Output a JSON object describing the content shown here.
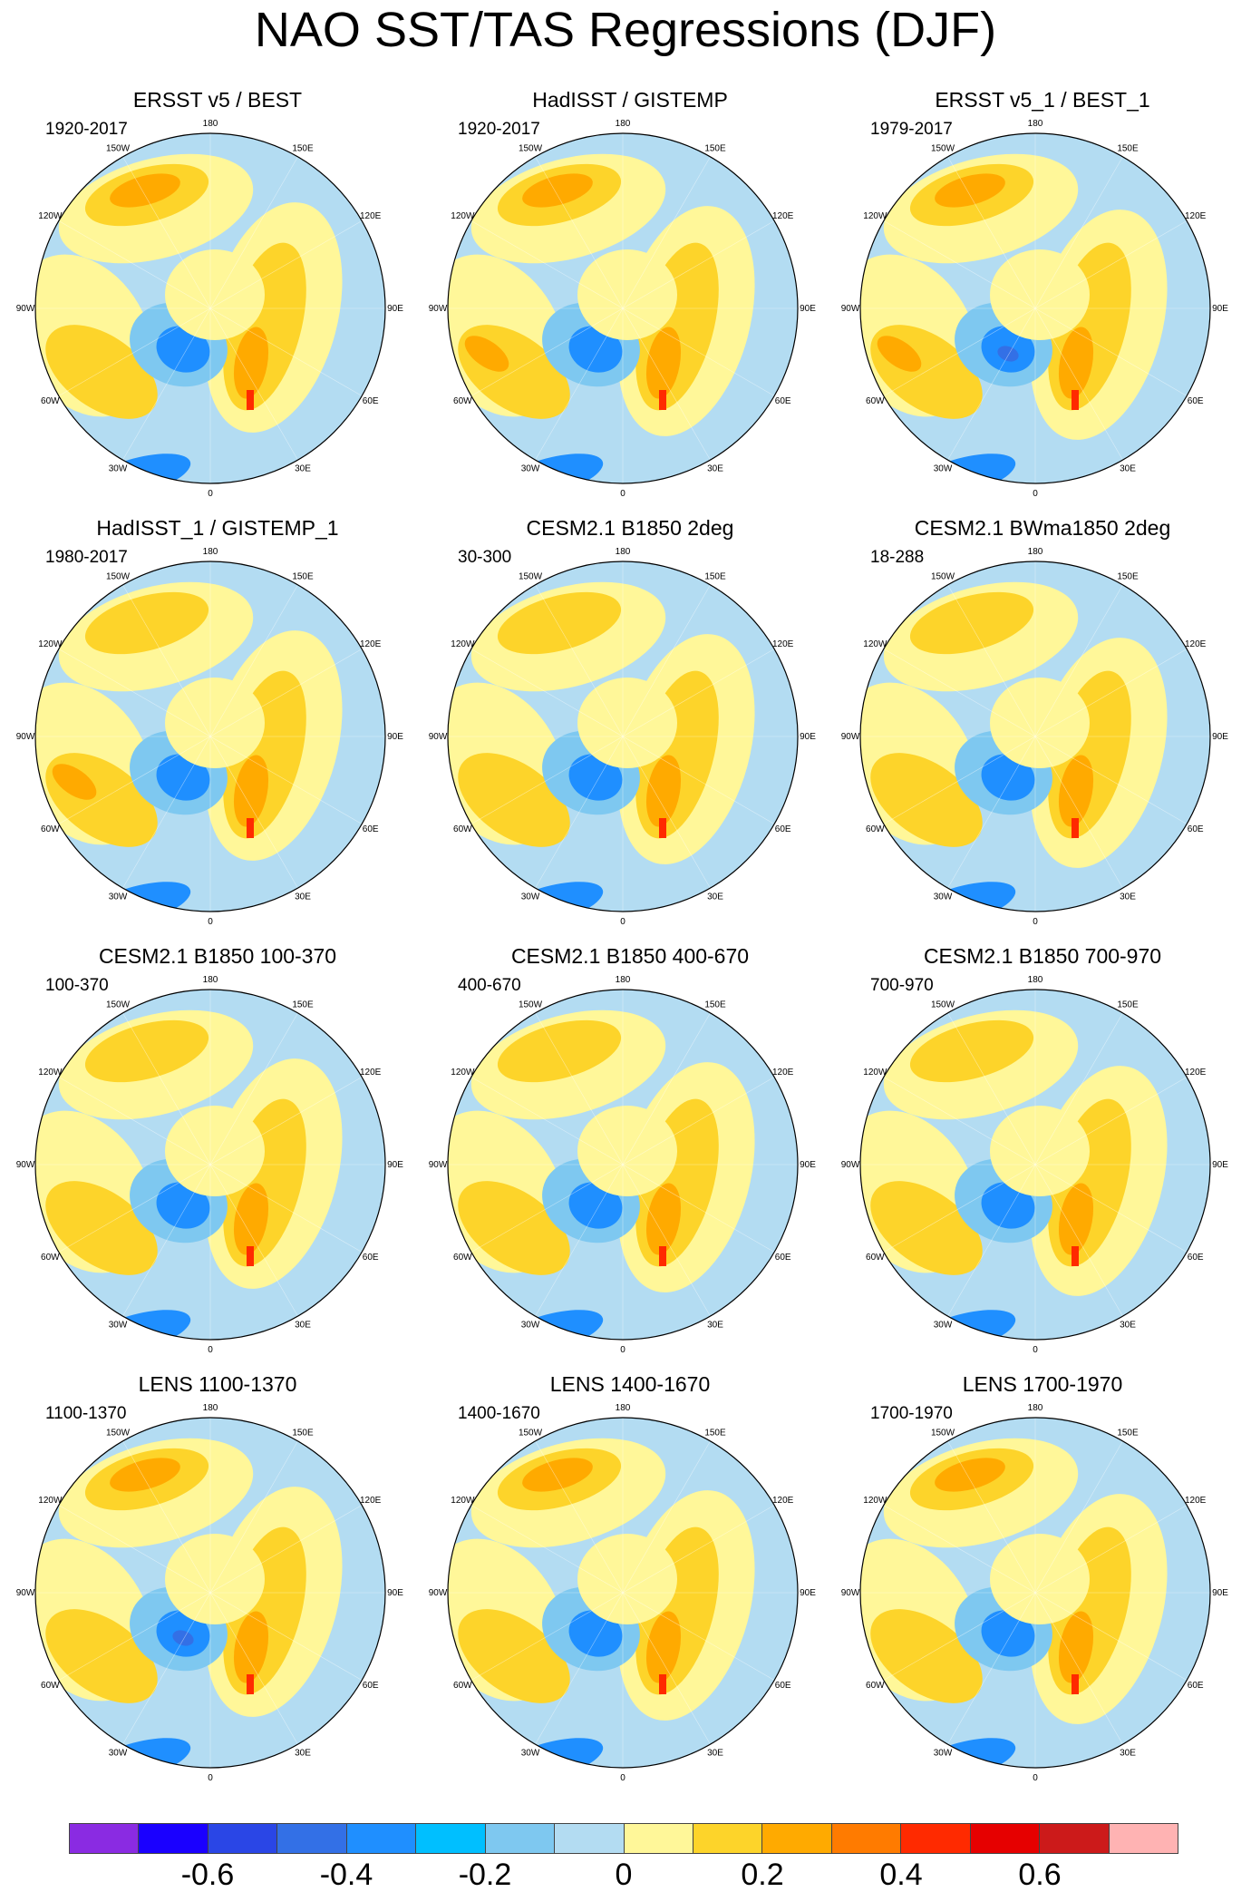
{
  "title": "NAO SST/TAS Regressions (DJF)",
  "lon_labels": [
    "180",
    "150E",
    "120E",
    "90E",
    "60E",
    "30E",
    "0",
    "30W",
    "60W",
    "90W",
    "120W",
    "150W"
  ],
  "panels": [
    {
      "title": "ERSST v5 / BEST",
      "period": "1920-2017"
    },
    {
      "title": "HadISST / GISTEMP",
      "period": "1920-2017"
    },
    {
      "title": "ERSST v5_1 / BEST_1",
      "period": "1979-2017"
    },
    {
      "title": "HadISST_1 / GISTEMP_1",
      "period": "1980-2017"
    },
    {
      "title": "CESM2.1 B1850 2deg",
      "period": "30-300"
    },
    {
      "title": "CESM2.1 BWma1850 2deg",
      "period": "18-288"
    },
    {
      "title": "CESM2.1 B1850 100-370",
      "period": "100-370"
    },
    {
      "title": "CESM2.1 B1850 400-670",
      "period": "400-670"
    },
    {
      "title": "CESM2.1 B1850 700-970",
      "period": "700-970"
    },
    {
      "title": "LENS 1100-1370",
      "period": "1100-1370"
    },
    {
      "title": "LENS 1400-1670",
      "period": "1400-1670"
    },
    {
      "title": "LENS 1700-1970",
      "period": "1700-1970"
    }
  ],
  "colorbar": {
    "colors": [
      "#8a2be2",
      "#1a00ff",
      "#2a46e6",
      "#3370e6",
      "#1f8fff",
      "#00bfff",
      "#7ec8f0",
      "#b3dcf2",
      "#fff799",
      "#fdd42a",
      "#ffaa00",
      "#ff7b00",
      "#ff2a00",
      "#e60000",
      "#cc1a1a",
      "#ffb3b3"
    ],
    "labels": [
      "-0.6",
      "-0.4",
      "-0.2",
      "0",
      "0.2",
      "0.4",
      "0.6"
    ],
    "label_values": [
      -0.6,
      -0.4,
      -0.2,
      0,
      0.2,
      0.4,
      0.6
    ],
    "range": [
      -0.7,
      0.7
    ],
    "step": 0.1
  }
}
